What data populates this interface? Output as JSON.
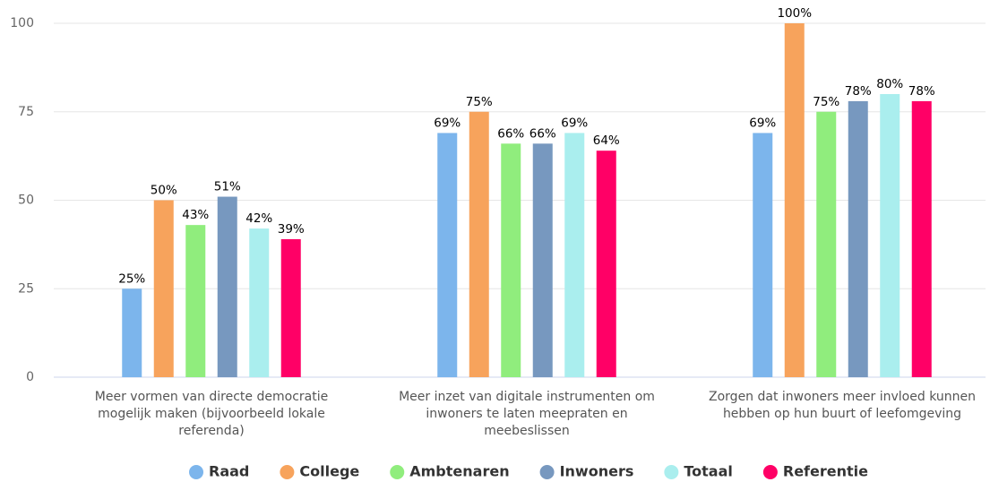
{
  "chart_data": {
    "type": "bar",
    "categories": [
      "Meer vormen van directe democratie mogelijk maken (bijvoorbeeld lokale referenda)",
      "Meer inzet van digitale instrumenten om inwoners te laten meepraten en meebeslissen",
      "Zorgen dat inwoners meer invloed kunnen hebben op hun buurt of leefomgeving"
    ],
    "series": [
      {
        "name": "Raad",
        "color": "#7cb5ec",
        "values": [
          25,
          69,
          69
        ],
        "value_labels": [
          "25%",
          "69%",
          "69%"
        ]
      },
      {
        "name": "College",
        "color": "#f7a35c",
        "values": [
          50,
          75,
          100
        ],
        "value_labels": [
          "50%",
          "75%",
          "100%"
        ]
      },
      {
        "name": "Ambtenaren",
        "color": "#90ed7d",
        "values": [
          43,
          66,
          75
        ],
        "value_labels": [
          "43%",
          "66%",
          "75%"
        ]
      },
      {
        "name": "Inwoners",
        "color": "#7798bf",
        "values": [
          51,
          66,
          78
        ],
        "value_labels": [
          "51%",
          "66%",
          "78%"
        ]
      },
      {
        "name": "Totaal",
        "color": "#aaeeee",
        "values": [
          42,
          69,
          80
        ],
        "value_labels": [
          "42%",
          "69%",
          "80%"
        ]
      },
      {
        "name": "Referentie",
        "color": "#ff0066",
        "values": [
          39,
          64,
          78
        ],
        "value_labels": [
          "39%",
          "64%",
          "78%"
        ]
      }
    ],
    "ylim": [
      0,
      100
    ],
    "yticks": [
      0,
      25,
      50,
      75,
      100
    ],
    "grid": true,
    "legend": "bottom"
  }
}
